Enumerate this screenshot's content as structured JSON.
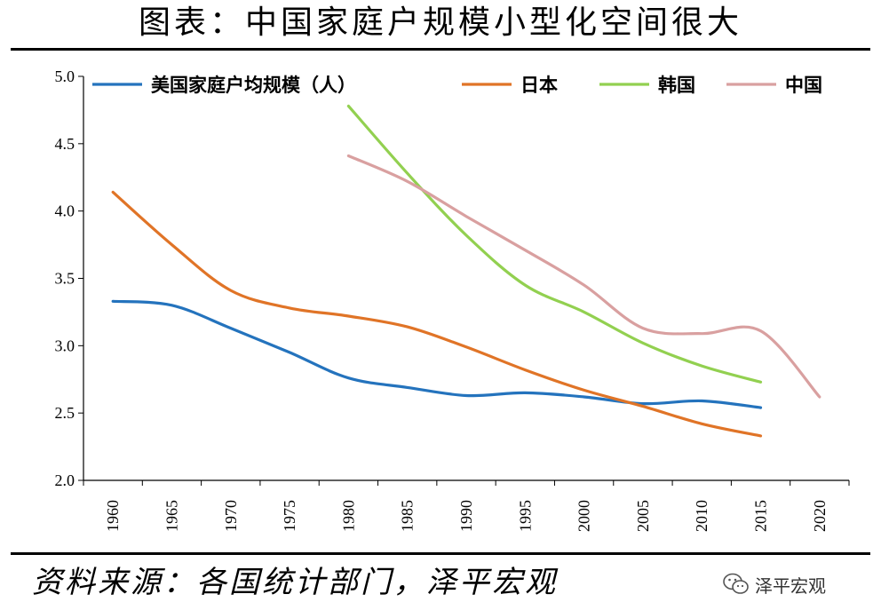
{
  "header": {
    "title": "图表：中国家庭户规模小型化空间很大"
  },
  "footer": {
    "source": "资料来源：各国统计部门，泽平宏观",
    "brand": "泽平宏观",
    "brand_icon": "wechat-icon"
  },
  "chart_data": {
    "type": "line",
    "title": "图表：中国家庭户规模小型化空间很大",
    "xlabel": "",
    "ylabel": "",
    "x": [
      1960,
      1965,
      1970,
      1975,
      1980,
      1985,
      1990,
      1995,
      2000,
      2005,
      2010,
      2015,
      2020
    ],
    "x_tick_labels": [
      "1960",
      "1965",
      "1970",
      "1975",
      "1980",
      "1985",
      "1990",
      "1995",
      "2000",
      "2005",
      "2010",
      "2015",
      "2020"
    ],
    "y_tick_labels": [
      "2.0",
      "2.5",
      "3.0",
      "3.5",
      "4.0",
      "4.5",
      "5.0"
    ],
    "ylim": [
      2.0,
      5.0
    ],
    "grid": false,
    "legend_position": "top",
    "series": [
      {
        "name": "美国家庭户均规模（人）",
        "color": "#2473bd",
        "x": [
          1960,
          1965,
          1970,
          1975,
          1980,
          1985,
          1990,
          1995,
          2000,
          2005,
          2010,
          2015
        ],
        "values": [
          3.33,
          3.3,
          3.13,
          2.95,
          2.76,
          2.69,
          2.63,
          2.65,
          2.62,
          2.57,
          2.59,
          2.54
        ]
      },
      {
        "name": "日本",
        "color": "#e07427",
        "x": [
          1960,
          1965,
          1970,
          1975,
          1980,
          1985,
          1990,
          1995,
          2000,
          2005,
          2010,
          2015
        ],
        "values": [
          4.14,
          3.75,
          3.41,
          3.28,
          3.22,
          3.14,
          2.99,
          2.82,
          2.67,
          2.55,
          2.42,
          2.33
        ]
      },
      {
        "name": "韩国",
        "color": "#92d050",
        "x": [
          1980,
          1985,
          1990,
          1995,
          2000,
          2005,
          2010,
          2015
        ],
        "values": [
          4.78,
          4.28,
          3.82,
          3.45,
          3.25,
          3.02,
          2.85,
          2.73
        ]
      },
      {
        "name": "中国",
        "color": "#d9a0a0",
        "x": [
          1980,
          1985,
          1990,
          1995,
          2000,
          2005,
          2010,
          2015,
          2020
        ],
        "values": [
          4.41,
          4.22,
          3.96,
          3.71,
          3.45,
          3.13,
          3.09,
          3.11,
          2.62
        ]
      }
    ]
  }
}
